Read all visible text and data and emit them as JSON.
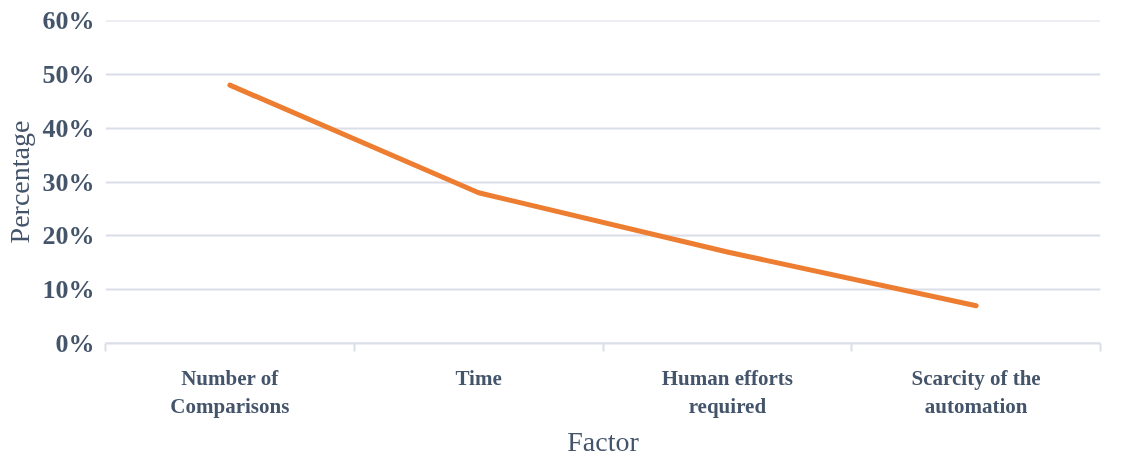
{
  "chart_data": {
    "type": "line",
    "xlabel": "Factor",
    "ylabel": "Percentage",
    "categories": [
      "Number of Comparisons",
      "Time",
      "Human efforts required",
      "Scarcity of the automation"
    ],
    "series": [
      {
        "color": "#ed7d31",
        "values": [
          48,
          28,
          17,
          7
        ]
      }
    ],
    "ylim": [
      0,
      60
    ],
    "yticks": [
      {
        "value": 0,
        "label": "0%"
      },
      {
        "value": 10,
        "label": "10%"
      },
      {
        "value": 20,
        "label": "20%"
      },
      {
        "value": 30,
        "label": "30%"
      },
      {
        "value": 40,
        "label": "40%"
      },
      {
        "value": 50,
        "label": "50%"
      },
      {
        "value": 60,
        "label": "60%"
      }
    ],
    "grid": "y",
    "marker": "none",
    "line_style": "solid"
  }
}
